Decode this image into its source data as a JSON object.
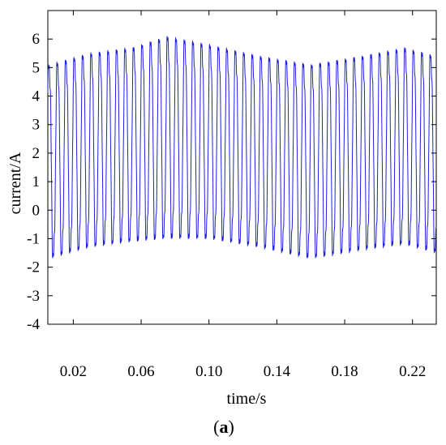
{
  "chart_data": {
    "type": "line",
    "title": "",
    "xlabel": "time/s",
    "ylabel": "current/A",
    "xlim": [
      0.005,
      0.234
    ],
    "ylim": [
      -4,
      7
    ],
    "xticks": [
      0.02,
      0.06,
      0.1,
      0.14,
      0.18,
      0.22
    ],
    "xtick_labels": [
      "0.02",
      "0.06",
      "0.10",
      "0.14",
      "0.18",
      "0.22"
    ],
    "yticks": [
      -4,
      -3,
      -2,
      -1,
      0,
      1,
      2,
      3,
      4,
      5,
      6
    ],
    "ytick_labels": [
      "-4",
      "-3",
      "-2",
      "-1",
      "0",
      "1",
      "2",
      "3",
      "4",
      "5",
      "6"
    ],
    "grid": false,
    "legend": "none",
    "line_color": "#1f1fe0",
    "series": [
      {
        "signal": "sinusoid",
        "frequency_hz": 200,
        "waveform_peaks": [
          {
            "t": 0.006,
            "max": 5.3,
            "min": -1.9
          },
          {
            "t": 0.03,
            "max": 5.7,
            "min": -1.5
          },
          {
            "t": 0.055,
            "max": 5.9,
            "min": -1.3
          },
          {
            "t": 0.075,
            "max": 6.3,
            "min": -1.2
          },
          {
            "t": 0.1,
            "max": 6.0,
            "min": -1.2
          },
          {
            "t": 0.13,
            "max": 5.6,
            "min": -1.5
          },
          {
            "t": 0.16,
            "max": 5.3,
            "min": -1.9
          },
          {
            "t": 0.19,
            "max": 5.6,
            "min": -1.6
          },
          {
            "t": 0.215,
            "max": 5.9,
            "min": -1.4
          },
          {
            "t": 0.234,
            "max": 5.6,
            "min": -1.7
          }
        ]
      }
    ]
  },
  "caption": {
    "open_paren": "(",
    "letter": "a",
    "close_paren": ")"
  }
}
